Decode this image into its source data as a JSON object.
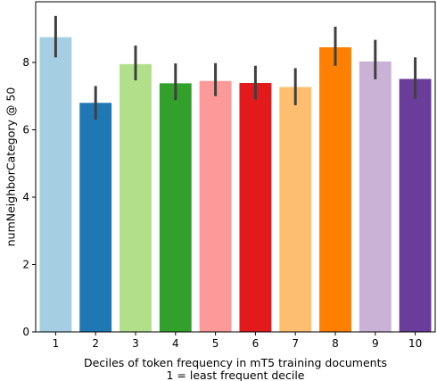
{
  "chart_data": {
    "type": "bar",
    "categories": [
      "1",
      "2",
      "3",
      "4",
      "5",
      "6",
      "7",
      "8",
      "9",
      "10"
    ],
    "values": [
      8.75,
      6.8,
      7.95,
      7.38,
      7.45,
      7.39,
      7.27,
      8.45,
      8.03,
      7.51
    ],
    "error_low": [
      8.15,
      6.3,
      7.47,
      6.88,
      7.0,
      6.9,
      6.73,
      7.9,
      7.5,
      6.92
    ],
    "error_high": [
      9.38,
      7.3,
      8.5,
      7.97,
      7.98,
      7.9,
      7.83,
      9.06,
      8.67,
      8.15
    ],
    "colors": [
      "#a6cee3",
      "#1f78b4",
      "#b2df8a",
      "#33a02c",
      "#fb9a99",
      "#e31a1c",
      "#fdbf6f",
      "#ff7f00",
      "#cab2d6",
      "#6a3d9a"
    ],
    "error_bar_color": "#3f3f3f",
    "ylim": [
      0,
      9.8
    ],
    "yticks": [
      0,
      2,
      4,
      6,
      8
    ],
    "ylabel": "numNeighborCategory @ 50",
    "xlabel": "Deciles of token frequency in mT5 training documents",
    "xlabel_line2": "1 = least frequent decile",
    "grid": false,
    "legend": false
  }
}
